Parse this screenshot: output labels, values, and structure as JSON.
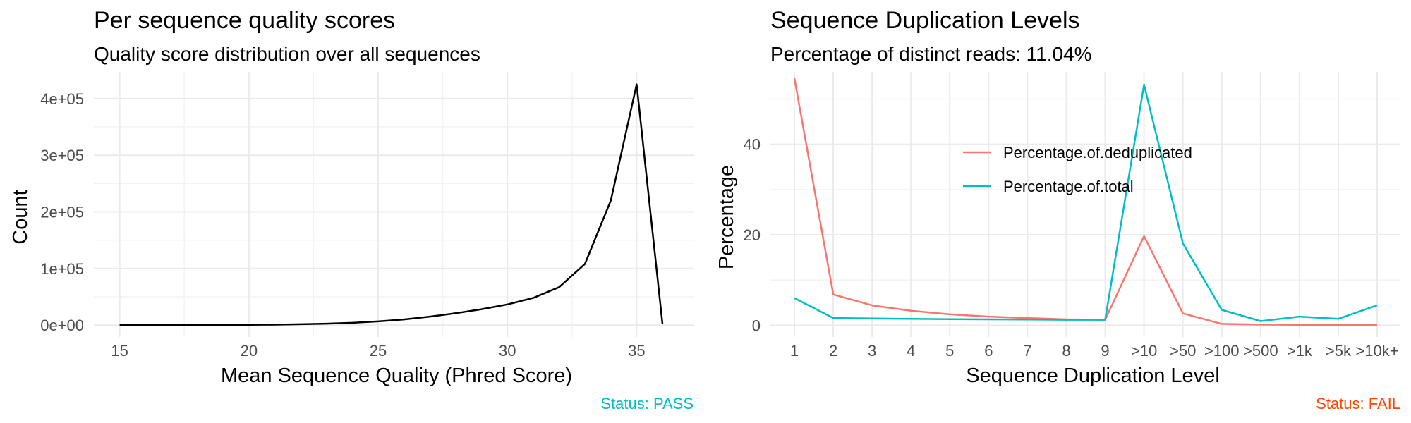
{
  "chart_data": [
    {
      "type": "line",
      "title": "Per sequence quality scores",
      "subtitle": "Quality score distribution over all sequences",
      "xlabel": "Mean Sequence Quality (Phred Score)",
      "ylabel": "Count",
      "status": "Status: PASS",
      "status_color": "#00BFC4",
      "line_color": "#000000",
      "xlim": [
        14,
        37.2
      ],
      "ylim": [
        -21000,
        447000
      ],
      "x_ticks": [
        15,
        20,
        25,
        30,
        35
      ],
      "x_tick_labels": [
        "15",
        "20",
        "25",
        "30",
        "35"
      ],
      "y_ticks": [
        0,
        100000,
        200000,
        300000,
        400000
      ],
      "y_tick_labels": [
        "0e+00",
        "1e+05",
        "2e+05",
        "3e+05",
        "4e+05"
      ],
      "grid": true,
      "x": [
        15,
        16,
        17,
        18,
        19,
        20,
        21,
        22,
        23,
        24,
        25,
        26,
        27,
        28,
        29,
        30,
        31,
        32,
        33,
        34,
        35,
        36
      ],
      "y": [
        0,
        0,
        0,
        0,
        200,
        400,
        800,
        1500,
        2500,
        4000,
        6500,
        10000,
        15000,
        21000,
        28000,
        36500,
        48000,
        67000,
        108000,
        220000,
        425000,
        2000
      ]
    },
    {
      "type": "line",
      "title": "Sequence Duplication Levels",
      "subtitle": "Percentage of distinct reads: 11.04%",
      "xlabel": "Sequence Duplication Level",
      "ylabel": "Percentage",
      "status": "Status: FAIL",
      "status_color": "#FF4500",
      "categories": [
        "1",
        "2",
        "3",
        "4",
        "5",
        "6",
        "7",
        "8",
        "9",
        ">10",
        ">50",
        ">100",
        ">500",
        ">1k",
        ">5k",
        ">10k+"
      ],
      "ylim": [
        -2.6,
        56
      ],
      "y_ticks": [
        0,
        20,
        40
      ],
      "y_tick_labels": [
        "0",
        "20",
        "40"
      ],
      "grid": true,
      "legend_position": "top-center",
      "series": [
        {
          "name": "Percentage.of.deduplicated",
          "color": "#F8766D",
          "values": [
            54.6,
            6.8,
            4.4,
            3.2,
            2.4,
            1.9,
            1.6,
            1.3,
            1.2,
            19.7,
            2.6,
            0.3,
            0.15,
            0.1,
            0.08,
            0.08
          ]
        },
        {
          "name": "Percentage.of.total",
          "color": "#00BFC4",
          "values": [
            6.0,
            1.6,
            1.5,
            1.4,
            1.35,
            1.3,
            1.25,
            1.2,
            1.2,
            53.2,
            18.1,
            3.4,
            0.9,
            1.9,
            1.4,
            4.4
          ]
        }
      ]
    }
  ]
}
